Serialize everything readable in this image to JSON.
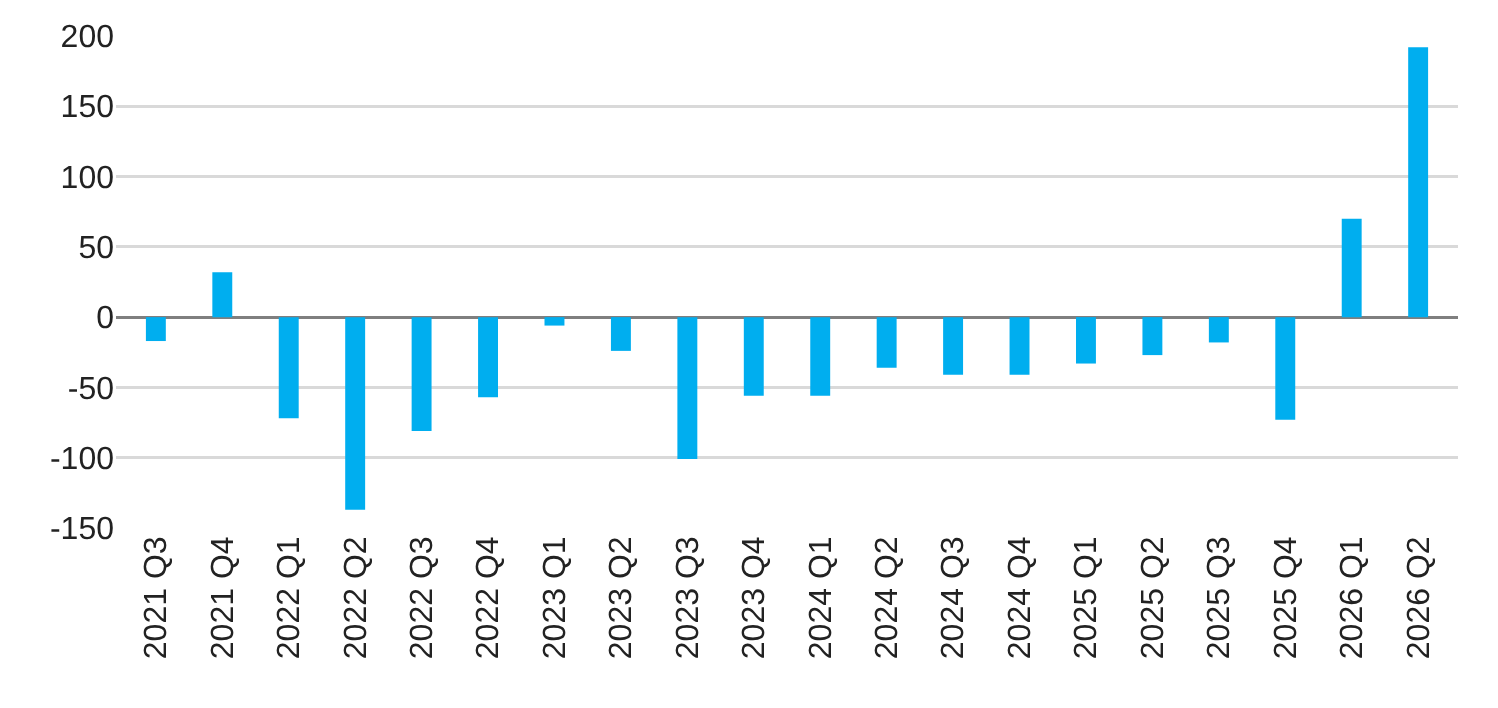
{
  "chart_data": {
    "type": "bar",
    "categories": [
      "2021 Q3",
      "2021 Q4",
      "2022 Q1",
      "2022 Q2",
      "2022 Q3",
      "2022 Q4",
      "2023 Q1",
      "2023 Q2",
      "2023 Q3",
      "2023 Q4",
      "2024 Q1",
      "2024 Q2",
      "2024 Q3",
      "2024 Q4",
      "2025 Q1",
      "2025 Q2",
      "2025 Q3",
      "2025 Q4",
      "2026 Q1",
      "2026 Q2"
    ],
    "values": [
      -17,
      32,
      -72,
      -137,
      -81,
      -57,
      -6,
      -24,
      -101,
      -56,
      -56,
      -36,
      -41,
      -41,
      -33,
      -27,
      -18,
      -73,
      70,
      192
    ],
    "color": "#00aeef",
    "ylim": [
      -150,
      200
    ],
    "yticks": [
      -150,
      -100,
      -50,
      0,
      50,
      100,
      150,
      200
    ],
    "grid": "y"
  }
}
